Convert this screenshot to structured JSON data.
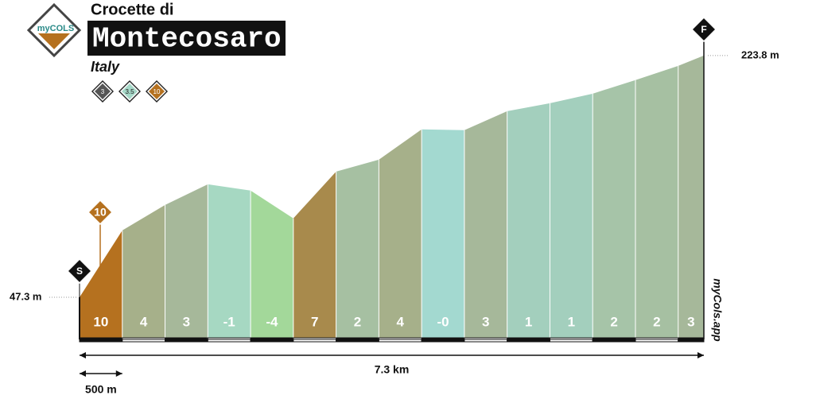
{
  "header": {
    "subtitle": "Crocette di",
    "title": "Montecosaro",
    "country": "Italy",
    "logo": "myCOLS",
    "difficulty_badges": [
      {
        "label": "3",
        "color": "#555"
      },
      {
        "label": "3.5",
        "color": "#a6d8c8"
      },
      {
        "label": "10",
        "color": "#b5711f"
      }
    ]
  },
  "chart_data": {
    "type": "area",
    "x": [
      0,
      0.5,
      1.0,
      1.5,
      2.0,
      2.5,
      3.0,
      3.5,
      4.0,
      4.5,
      5.0,
      5.5,
      6.0,
      6.5,
      7.0,
      7.3
    ],
    "values": [
      47.3,
      96.1,
      114.7,
      129.8,
      125.2,
      104.9,
      139.1,
      147.8,
      169.9,
      169.3,
      183.2,
      189.0,
      196.0,
      205.9,
      216.3,
      223.8
    ],
    "gradient_labels": [
      "10",
      "4",
      "3",
      "-1",
      "-4",
      "7",
      "2",
      "4",
      "-0",
      "3",
      "1",
      "1",
      "2",
      "2",
      "3"
    ],
    "colors": [
      "#b5711f",
      "#a6b08a",
      "#a6b89a",
      "#a6d8c2",
      "#a3d89a",
      "#a88a4c",
      "#a6c0a2",
      "#a6b08a",
      "#a3d9d0",
      "#a6b89a",
      "#a3cfbd",
      "#a3cfbd",
      "#a6c4a8",
      "#a6c0a2",
      "#a6b89a"
    ],
    "xlim": [
      0,
      7.3
    ],
    "ylim": [
      16.5,
      264.4
    ],
    "yticks": [
      {
        "value": 47.3,
        "label": "47.3 m"
      },
      {
        "value": 223.8,
        "label": "223.8 m"
      }
    ],
    "start_marker": "S",
    "finish_marker": "F",
    "max_gradient_label": "10",
    "distance_label": "7.3 km",
    "scale_label": "500 m",
    "watermark": "myCols.app"
  }
}
